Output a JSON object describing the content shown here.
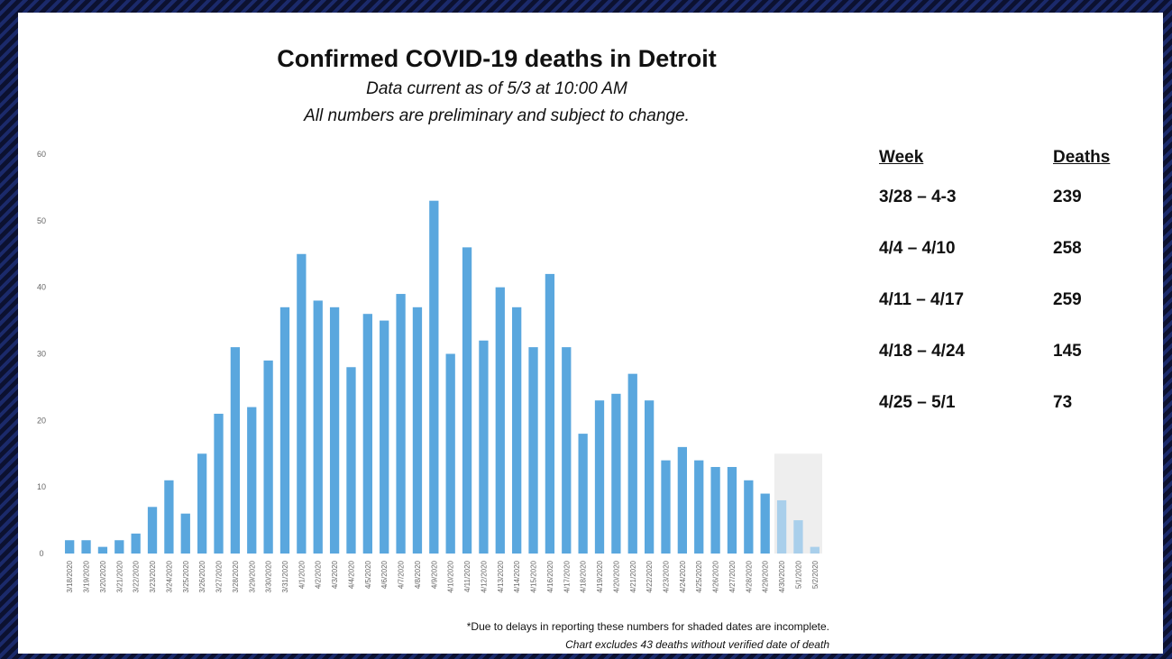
{
  "title": "Confirmed COVID-19 deaths in Detroit",
  "subtitle_1": "Data current as of 5/3 at 10:00 AM",
  "subtitle_2": "All numbers are preliminary and subject to change.",
  "table": {
    "headers": [
      "Week",
      "Deaths"
    ],
    "rows": [
      {
        "week": "3/28 – 4-3",
        "deaths": "239"
      },
      {
        "week": "4/4 – 4/10",
        "deaths": "258"
      },
      {
        "week": "4/11 – 4/17",
        "deaths": "259"
      },
      {
        "week": "4/18 – 4/24",
        "deaths": "145"
      },
      {
        "week": "4/25 – 5/1",
        "deaths": "73"
      }
    ]
  },
  "footnote_1": "*Due to delays in reporting these numbers for shaded dates are incomplete.",
  "footnote_2": "Chart excludes 43 deaths without verified date of death",
  "colors": {
    "bar": "#5aa7de",
    "shaded_bar": "#a9cfeb",
    "shade_region": "#eeeeee"
  },
  "chart_data": {
    "type": "bar",
    "categories": [
      "3/18/2020",
      "3/19/2020",
      "3/20/2020",
      "3/21/2020",
      "3/22/2020",
      "3/23/2020",
      "3/24/2020",
      "3/25/2020",
      "3/26/2020",
      "3/27/2020",
      "3/28/2020",
      "3/29/2020",
      "3/30/2020",
      "3/31/2020",
      "4/1/2020",
      "4/2/2020",
      "4/3/2020",
      "4/4/2020",
      "4/5/2020",
      "4/6/2020",
      "4/7/2020",
      "4/8/2020",
      "4/9/2020",
      "4/10/2020",
      "4/11/2020",
      "4/12/2020",
      "4/13/2020",
      "4/14/2020",
      "4/15/2020",
      "4/16/2020",
      "4/17/2020",
      "4/18/2020",
      "4/19/2020",
      "4/20/2020",
      "4/21/2020",
      "4/22/2020",
      "4/23/2020",
      "4/24/2020",
      "4/25/2020",
      "4/26/2020",
      "4/27/2020",
      "4/28/2020",
      "4/29/2020",
      "4/30/2020",
      "5/1/2020",
      "5/2/2020"
    ],
    "values": [
      2,
      2,
      1,
      2,
      3,
      7,
      11,
      6,
      15,
      21,
      31,
      22,
      29,
      37,
      45,
      38,
      37,
      28,
      36,
      35,
      39,
      37,
      53,
      30,
      46,
      32,
      40,
      37,
      31,
      42,
      31,
      18,
      23,
      24,
      27,
      23,
      14,
      16,
      14,
      13,
      13,
      11,
      9,
      8,
      5,
      1
    ],
    "shaded_categories": [
      "4/30/2020",
      "5/1/2020",
      "5/2/2020"
    ],
    "ylim": [
      0,
      60
    ],
    "yticks": [
      0,
      10,
      20,
      30,
      40,
      50,
      60
    ],
    "grid": false,
    "xlabel": "",
    "ylabel": ""
  }
}
